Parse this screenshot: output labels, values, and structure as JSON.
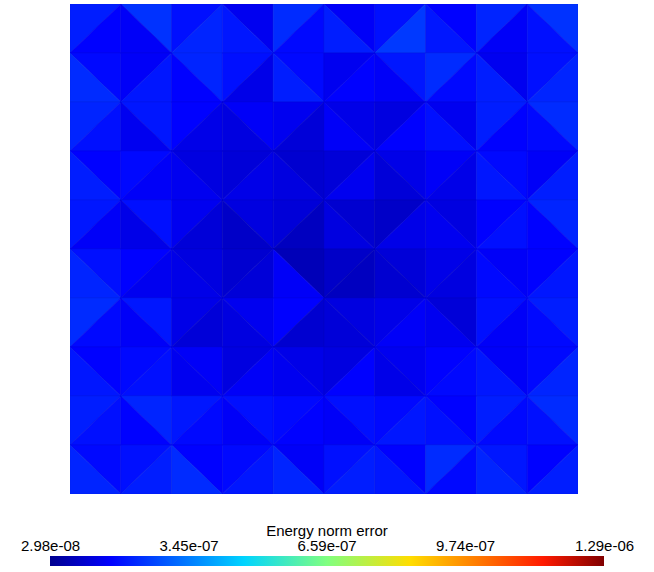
{
  "chart_data": {
    "type": "heatmap",
    "colorbar": {
      "title": "Energy norm error",
      "range": [
        2.98e-08,
        1.29e-06
      ],
      "ticks": [
        {
          "value": 2.98e-08,
          "label": "2.98e-08"
        },
        {
          "value": 3.45e-07,
          "label": "3.45e-07"
        },
        {
          "value": 6.59e-07,
          "label": "6.59e-07"
        },
        {
          "value": 9.74e-07,
          "label": "9.74e-07"
        },
        {
          "value": 1.29e-06,
          "label": "1.29e-06"
        }
      ]
    },
    "cells": [
      [
        2.1e-07,
        1.7e-07,
        2.4e-07,
        1.6e-07,
        1.9e-07,
        2.2e-07,
        1.5e-07,
        2e-07,
        2.3e-07,
        1.8e-07,
        1.6e-07,
        2.1e-07,
        1.9e-07,
        2.5e-07,
        1.7e-07,
        2e-07,
        2.2e-07,
        1.6e-07,
        2.4e-07,
        1.9e-07
      ],
      [
        1.8e-07,
        2.3e-07,
        1.6e-07,
        2e-07,
        2.2e-07,
        1.7e-07,
        1.9e-07,
        1.4e-07,
        1.8e-07,
        2.1e-07,
        1.5e-07,
        1.7e-07,
        2e-07,
        1.6e-07,
        2.3e-07,
        1.8e-07,
        1.5e-07,
        2.1e-07,
        1.9e-07,
        2.2e-07
      ],
      [
        2.2e-07,
        1.9e-07,
        2e-07,
        1.5e-07,
        1.7e-07,
        1.4e-07,
        1.6e-07,
        1.3e-07,
        1.5e-07,
        1.2e-07,
        1.4e-07,
        1.6e-07,
        1.3e-07,
        1.7e-07,
        1.5e-07,
        1.9e-07,
        2.1e-07,
        1.7e-07,
        2.3e-07,
        1.8e-07
      ],
      [
        1.7e-07,
        2.1e-07,
        1.8e-07,
        1.6e-07,
        1.3e-07,
        1.5e-07,
        1.2e-07,
        1.4e-07,
        1.1e-07,
        1.3e-07,
        1.2e-07,
        1.5e-07,
        1.4e-07,
        1.2e-07,
        1.6e-07,
        1.4e-07,
        1.8e-07,
        2e-07,
        1.6e-07,
        2.1e-07
      ],
      [
        2e-07,
        1.6e-07,
        1.9e-07,
        1.4e-07,
        1.5e-07,
        1.2e-07,
        1.3e-07,
        1e-07,
        1.2e-07,
        9e-08,
        1.1e-07,
        1.3e-07,
        1e-07,
        1.4e-07,
        1.3e-07,
        1.5e-07,
        1.7e-07,
        1.9e-07,
        2.2e-07,
        1.7e-07
      ],
      [
        1.9e-07,
        2.2e-07,
        1.7e-07,
        1.5e-07,
        1.3e-07,
        1.4e-07,
        1.1e-07,
        1.2e-07,
        8e-08,
        1.6e-07,
        1e-07,
        9e-08,
        1.2e-07,
        1.1e-07,
        1.4e-07,
        1.3e-07,
        1.6e-07,
        1.8e-07,
        1.7e-07,
        2e-07
      ],
      [
        2.3e-07,
        1.8e-07,
        2e-07,
        1.6e-07,
        1.4e-07,
        1.2e-07,
        1.5e-07,
        1.3e-07,
        1.7e-07,
        1.1e-07,
        1.3e-07,
        1.2e-07,
        1.4e-07,
        1.6e-07,
        1.2e-07,
        1.5e-07,
        1.9e-07,
        1.6e-07,
        2.1e-07,
        1.8e-07
      ],
      [
        1.7e-07,
        2e-07,
        1.8e-07,
        1.9e-07,
        1.6e-07,
        1.5e-07,
        1.3e-07,
        1.6e-07,
        1.4e-07,
        1.5e-07,
        1.3e-07,
        1.7e-07,
        1.5e-07,
        1.4e-07,
        1.7e-07,
        1.8e-07,
        1.6e-07,
        2e-07,
        1.8e-07,
        2.2e-07
      ],
      [
        2.1e-07,
        1.9e-07,
        2.2e-07,
        1.7e-07,
        2e-07,
        1.8e-07,
        1.9e-07,
        1.6e-07,
        1.8e-07,
        1.7e-07,
        1.9e-07,
        1.6e-07,
        1.8e-07,
        2e-07,
        1.7e-07,
        1.9e-07,
        2.1e-07,
        1.8e-07,
        2.3e-07,
        1.9e-07
      ],
      [
        1.8e-07,
        2.2e-07,
        1.9e-07,
        2.1e-07,
        1.7e-07,
        2.3e-07,
        1.8e-07,
        2e-07,
        1.6e-07,
        2.2e-07,
        1.9e-07,
        2.1e-07,
        1.7e-07,
        2e-07,
        2.3e-07,
        1.8e-07,
        2e-07,
        2.2e-07,
        1.7e-07,
        2.1e-07
      ]
    ]
  }
}
